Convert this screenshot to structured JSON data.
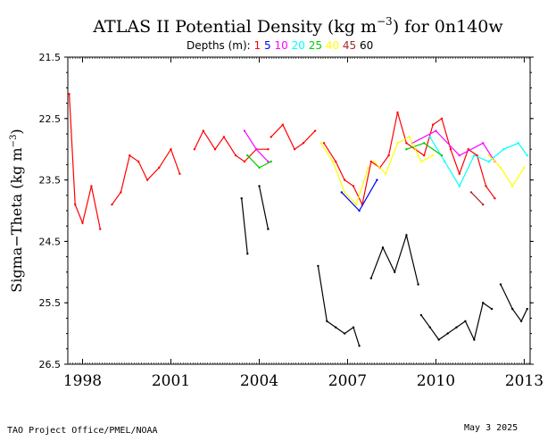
{
  "chart_data": {
    "type": "line",
    "title": {
      "prefix": "ATLAS II Potential Density (kg m",
      "superscript": "−3",
      "suffix": ") for 0n140w"
    },
    "legend": {
      "label": "Depths (m):",
      "items": [
        {
          "label": "1",
          "color": "#ff0000"
        },
        {
          "label": "5",
          "color": "#0000ff"
        },
        {
          "label": "10",
          "color": "#ff00ff"
        },
        {
          "label": "20",
          "color": "#00ffff"
        },
        {
          "label": "25",
          "color": "#00cc00"
        },
        {
          "label": "40",
          "color": "#ffff00"
        },
        {
          "label": "45",
          "color": "#a52a2a"
        },
        {
          "label": "60",
          "color": "#000000"
        }
      ]
    },
    "ylabel": {
      "prefix": "Sigma−Theta (kg m",
      "superscript": "−3",
      "suffix": ")"
    },
    "xlim": [
      1997.5,
      2013.2
    ],
    "ylim": [
      26.5,
      21.5
    ],
    "y_reversed": true,
    "yticks": [
      "21.5",
      "22.5",
      "23.5",
      "24.5",
      "25.5",
      "26.5"
    ],
    "xticks": [
      "1998",
      "2001",
      "2004",
      "2007",
      "2010",
      "2013"
    ],
    "series": [
      {
        "name": "1",
        "color": "#ff0000",
        "segments": [
          {
            "x": [
              1997.55,
              1997.75,
              1998.0,
              1998.3,
              1998.6
            ],
            "y": [
              22.1,
              23.9,
              24.2,
              23.6,
              24.3
            ]
          },
          {
            "x": [
              1999.0,
              1999.3,
              1999.6,
              1999.9,
              2000.2,
              2000.6,
              2001.0,
              2001.3
            ],
            "y": [
              23.9,
              23.7,
              23.1,
              23.2,
              23.5,
              23.3,
              23.0,
              23.4
            ]
          },
          {
            "x": [
              2001.8,
              2002.1,
              2002.5,
              2002.8,
              2003.2,
              2003.5,
              2003.9,
              2004.3
            ],
            "y": [
              23.0,
              22.7,
              23.0,
              22.8,
              23.1,
              23.2,
              23.0,
              23.0
            ]
          },
          {
            "x": [
              2004.4,
              2004.8,
              2005.2,
              2005.5,
              2005.9
            ],
            "y": [
              22.8,
              22.6,
              23.0,
              22.9,
              22.7
            ]
          },
          {
            "x": [
              2006.2,
              2006.6,
              2006.9,
              2007.2,
              2007.5,
              2007.8,
              2008.1,
              2008.4,
              2008.7,
              2009.0,
              2009.3,
              2009.6,
              2009.9,
              2010.2,
              2010.5,
              2010.8,
              2011.1,
              2011.4,
              2011.7,
              2012.0
            ],
            "y": [
              22.9,
              23.2,
              23.5,
              23.6,
              23.9,
              23.2,
              23.3,
              23.1,
              22.4,
              22.9,
              23.0,
              23.1,
              22.6,
              22.5,
              23.0,
              23.4,
              23.0,
              23.1,
              23.6,
              23.8
            ]
          }
        ]
      },
      {
        "name": "5",
        "color": "#0000ff",
        "segments": [
          {
            "x": [
              2006.8,
              2007.4,
              2008.0
            ],
            "y": [
              23.7,
              24.0,
              23.5
            ]
          }
        ]
      },
      {
        "name": "10",
        "color": "#ff00ff",
        "segments": [
          {
            "x": [
              2003.5,
              2003.9,
              2004.3
            ],
            "y": [
              22.7,
              23.0,
              23.2
            ]
          },
          {
            "x": [
              2009.2,
              2010.0,
              2010.8,
              2011.6,
              2012.0
            ],
            "y": [
              22.9,
              22.7,
              23.1,
              22.9,
              23.2
            ]
          }
        ]
      },
      {
        "name": "20",
        "color": "#00ffff",
        "segments": [
          {
            "x": [
              2009.8,
              2010.3,
              2010.8,
              2011.3,
              2011.8,
              2012.3,
              2012.8,
              2013.1
            ],
            "y": [
              22.8,
              23.2,
              23.6,
              23.1,
              23.2,
              23.0,
              22.9,
              23.1
            ]
          }
        ]
      },
      {
        "name": "25",
        "color": "#00cc00",
        "segments": [
          {
            "x": [
              2003.6,
              2004.0,
              2004.4
            ],
            "y": [
              23.1,
              23.3,
              23.2
            ]
          },
          {
            "x": [
              2009.0,
              2009.6,
              2010.2
            ],
            "y": [
              23.0,
              22.9,
              23.1
            ]
          }
        ]
      },
      {
        "name": "40",
        "color": "#ffff00",
        "segments": [
          {
            "x": [
              2006.1,
              2006.5,
              2006.9,
              2007.3,
              2007.7
            ],
            "y": [
              22.9,
              23.2,
              23.7,
              23.9,
              23.3
            ]
          },
          {
            "x": [
              2007.9,
              2008.3,
              2008.7,
              2009.1,
              2009.5,
              2009.9
            ],
            "y": [
              23.2,
              23.4,
              22.9,
              22.8,
              23.2,
              23.1
            ]
          },
          {
            "x": [
              2011.8,
              2012.2,
              2012.6,
              2013.0
            ],
            "y": [
              23.1,
              23.3,
              23.6,
              23.3
            ]
          }
        ]
      },
      {
        "name": "45",
        "color": "#a52a2a",
        "segments": [
          {
            "x": [
              2011.2,
              2011.6
            ],
            "y": [
              23.7,
              23.9
            ]
          }
        ]
      },
      {
        "name": "60",
        "color": "#000000",
        "segments": [
          {
            "x": [
              2003.4,
              2003.6
            ],
            "y": [
              23.8,
              24.7
            ]
          },
          {
            "x": [
              2004.0,
              2004.3
            ],
            "y": [
              23.6,
              24.3
            ]
          },
          {
            "x": [
              2006.0,
              2006.3,
              2006.6,
              2006.9,
              2007.2,
              2007.4
            ],
            "y": [
              24.9,
              25.8,
              25.9,
              26.0,
              25.9,
              26.2
            ]
          },
          {
            "x": [
              2007.8,
              2008.2,
              2008.6,
              2009.0,
              2009.4
            ],
            "y": [
              25.1,
              24.6,
              25.0,
              24.4,
              25.2
            ]
          },
          {
            "x": [
              2009.5,
              2009.8,
              2010.1,
              2010.4,
              2010.7,
              2011.0,
              2011.3,
              2011.6,
              2011.9
            ],
            "y": [
              25.7,
              25.9,
              26.1,
              26.0,
              25.9,
              25.8,
              26.1,
              25.5,
              25.6
            ]
          },
          {
            "x": [
              2012.2,
              2012.6,
              2012.9,
              2013.1
            ],
            "y": [
              25.2,
              25.6,
              25.8,
              25.6
            ]
          }
        ]
      }
    ]
  },
  "footer": {
    "credit": "TAO Project Office/PMEL/NOAA",
    "date": "May  3 2025"
  }
}
